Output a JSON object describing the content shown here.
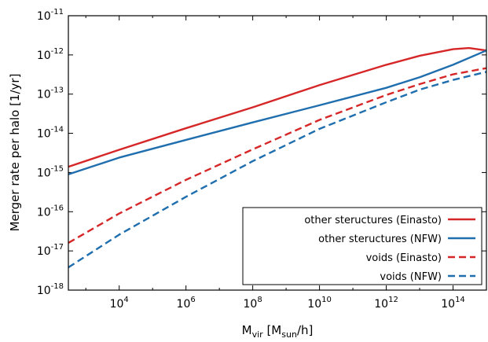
{
  "chart_data": {
    "type": "line",
    "title": "",
    "xlabel": {
      "main": "M",
      "sub": "vir",
      "tail_open": " [M",
      "tail_sub": "sun",
      "tail_close": "/h]"
    },
    "ylabel": "Merger rate per halo [1/yr]",
    "x_scale": "log",
    "y_scale": "log",
    "xlim": [
      300,
      1000000000000000
    ],
    "ylim": [
      1e-18,
      1e-11
    ],
    "x_ticks": [
      {
        "value": 10000,
        "base": "10",
        "exp": "4"
      },
      {
        "value": 1000000,
        "base": "10",
        "exp": "6"
      },
      {
        "value": 100000000,
        "base": "10",
        "exp": "8"
      },
      {
        "value": 10000000000,
        "base": "10",
        "exp": "10"
      },
      {
        "value": 1000000000000,
        "base": "10",
        "exp": "12"
      },
      {
        "value": 100000000000000,
        "base": "10",
        "exp": "14"
      }
    ],
    "y_ticks": [
      {
        "value": 1e-18,
        "base": "10",
        "exp": "-18"
      },
      {
        "value": 1e-17,
        "base": "10",
        "exp": "-17"
      },
      {
        "value": 1e-16,
        "base": "10",
        "exp": "-16"
      },
      {
        "value": 1e-15,
        "base": "10",
        "exp": "-15"
      },
      {
        "value": 1e-14,
        "base": "10",
        "exp": "-14"
      },
      {
        "value": 1e-13,
        "base": "10",
        "exp": "-13"
      },
      {
        "value": 1e-12,
        "base": "10",
        "exp": "-12"
      },
      {
        "value": 1e-11,
        "base": "10",
        "exp": "-11"
      }
    ],
    "grid": false,
    "legend_position": "bottom-right",
    "series": [
      {
        "name": "other steructures (Einasto)",
        "color": "#d62728",
        "dash": "solid",
        "x": [
          300,
          10000,
          1000000,
          100000000,
          10000000000,
          1000000000000,
          10000000000000,
          100000000000000,
          300000000000000,
          1000000000000000
        ],
        "y": [
          1.4e-15,
          3.8e-15,
          1.35e-14,
          4.6e-14,
          1.7e-13,
          5.6e-13,
          9.5e-13,
          1.4e-12,
          1.5e-12,
          1.3e-12
        ]
      },
      {
        "name": "other steructures (NFW)",
        "color": "#1f6eae",
        "dash": "solid",
        "x": [
          300,
          10000,
          1000000,
          100000000,
          10000000000,
          1000000000000,
          10000000000000,
          100000000000000,
          1000000000000000
        ],
        "y": [
          9e-16,
          2.4e-15,
          6.8e-15,
          1.9e-14,
          5.2e-14,
          1.45e-13,
          2.7e-13,
          5.6e-13,
          1.3e-12
        ]
      },
      {
        "name": "voids (Einasto)",
        "color": "#d62728",
        "dash": "dashed",
        "x": [
          300,
          10000,
          1000000,
          100000000,
          10000000000,
          1000000000000,
          10000000000000,
          100000000000000,
          1000000000000000
        ],
        "y": [
          1.6e-17,
          9e-17,
          6.5e-16,
          3.9e-15,
          2.2e-14,
          9.5e-14,
          1.8e-13,
          3.2e-13,
          4.6e-13
        ]
      },
      {
        "name": "voids (NFW)",
        "color": "#1f6eae",
        "dash": "dashed",
        "x": [
          300,
          10000,
          1000000,
          100000000,
          10000000000,
          1000000000000,
          10000000000000,
          100000000000000,
          1000000000000000
        ],
        "y": [
          3.8e-18,
          2.6e-17,
          2.4e-16,
          1.95e-15,
          1.3e-14,
          6.2e-14,
          1.3e-13,
          2.3e-13,
          3.7e-13
        ]
      }
    ]
  }
}
